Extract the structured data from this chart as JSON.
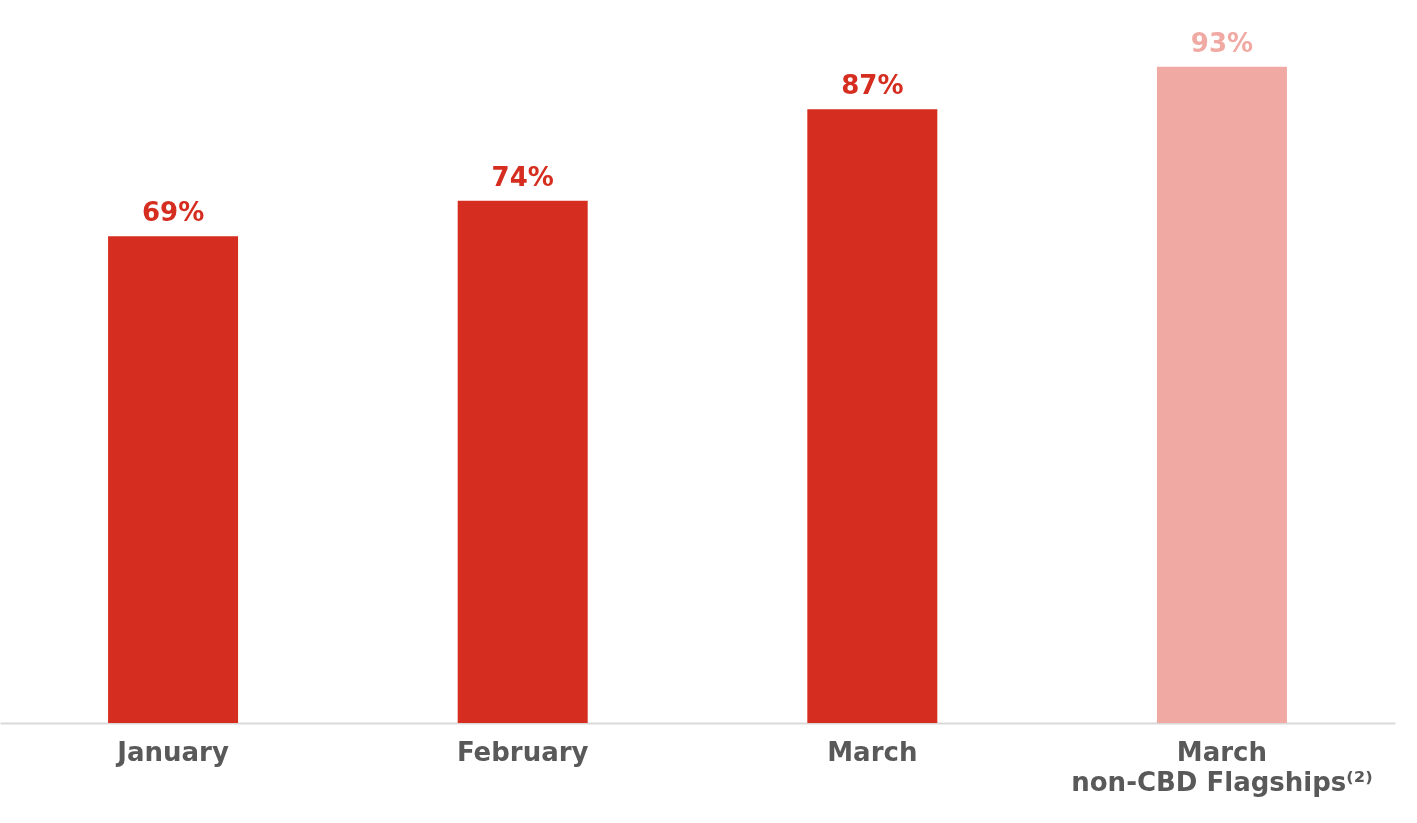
{
  "chart_data": {
    "type": "bar",
    "categories": [
      "January",
      "February",
      "March",
      "March\nnon-CBD Flagships⁽²⁾"
    ],
    "values": [
      69,
      74,
      87,
      93
    ],
    "colors": [
      "#d52e20",
      "#d52e20",
      "#d52e20",
      "#f0aaa3"
    ],
    "value_labels": [
      "69%",
      "74%",
      "87%",
      "93%"
    ]
  }
}
